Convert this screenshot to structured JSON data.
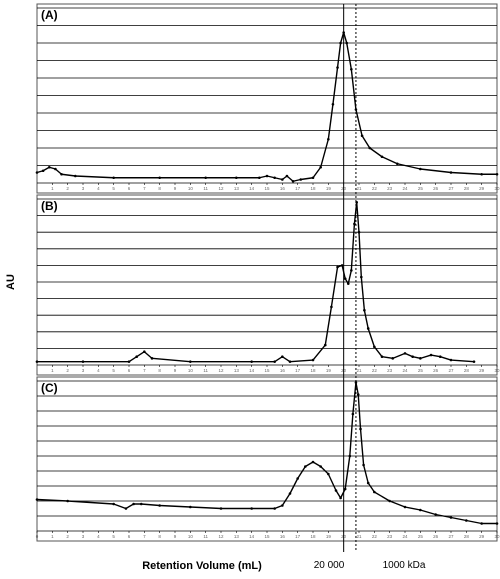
{
  "chart_data": {
    "type": "line",
    "ylabel": "AU",
    "xlabel": "Retention Volume (mL)",
    "markers": [
      {
        "label": "20 000",
        "x": 20
      },
      {
        "label": "1000 kDa",
        "x": 20.8
      }
    ],
    "xlim": [
      0,
      30
    ],
    "x_ticks": [
      "0",
      "1",
      "2",
      "3",
      "4",
      "5",
      "6",
      "7",
      "8",
      "9",
      "10",
      "11",
      "12",
      "13",
      "14",
      "15",
      "16",
      "17",
      "18",
      "19",
      "20",
      "21",
      "22",
      "23",
      "24",
      "25",
      "26",
      "27",
      "28",
      "29",
      "30"
    ],
    "panels": [
      {
        "label": "(A)",
        "ylim": [
          0,
          10
        ],
        "x_ticks": [
          "1",
          "2",
          "3",
          "4",
          "5",
          "6",
          "7",
          "8",
          "9",
          "10",
          "11",
          "12",
          "13",
          "14",
          "15",
          "16",
          "17",
          "18",
          "19",
          "20",
          "21",
          "22",
          "23",
          "24",
          "25",
          "26",
          "27",
          "28",
          "29",
          "30"
        ],
        "series": [
          {
            "x": [
              0,
              0.4,
              0.8,
              1.2,
              1.6,
              2.5,
              5,
              8,
              11,
              13,
              14.5,
              15,
              15.5,
              16,
              16.3,
              16.7,
              17.2,
              18,
              18.5,
              19,
              19.3,
              19.6,
              19.8,
              20,
              20.2,
              20.5,
              20.8,
              21.2,
              21.7,
              22.5,
              23.5,
              25,
              27,
              29,
              30
            ],
            "y": [
              0.6,
              0.7,
              0.9,
              0.8,
              0.5,
              0.4,
              0.3,
              0.3,
              0.3,
              0.3,
              0.3,
              0.4,
              0.3,
              0.2,
              0.4,
              0.1,
              0.2,
              0.3,
              0.9,
              2.5,
              4.5,
              6.6,
              8.0,
              8.6,
              8.0,
              6.5,
              4.2,
              2.7,
              2.0,
              1.5,
              1.1,
              0.8,
              0.6,
              0.5,
              0.5
            ]
          }
        ]
      },
      {
        "label": "(B)",
        "ylim": [
          0,
          10
        ],
        "x_ticks": [
          "1",
          "2",
          "3",
          "4",
          "5",
          "6",
          "7",
          "8",
          "9",
          "10",
          "11",
          "12",
          "13",
          "14",
          "15",
          "16",
          "17",
          "18",
          "19",
          "20",
          "21",
          "22",
          "23",
          "24",
          "25",
          "26",
          "27",
          "28",
          "29",
          "30"
        ],
        "series": [
          {
            "x": [
              0,
              3,
              6,
              6.5,
              7,
              7.5,
              10,
              14,
              15.5,
              16,
              16.5,
              18,
              18.8,
              19.2,
              19.6,
              19.9,
              20.1,
              20.3,
              20.5,
              20.7,
              20.85,
              21.0,
              21.15,
              21.35,
              21.6,
              22.0,
              22.5,
              23.2,
              24,
              24.5,
              25,
              25.7,
              26.3,
              27,
              28.5
            ],
            "y": [
              0.2,
              0.2,
              0.2,
              0.5,
              0.8,
              0.4,
              0.2,
              0.2,
              0.2,
              0.5,
              0.2,
              0.3,
              1.2,
              3.5,
              5.9,
              6.0,
              5.2,
              4.9,
              5.7,
              8.5,
              9.8,
              8.0,
              5.3,
              3.3,
              2.2,
              1.1,
              0.5,
              0.4,
              0.7,
              0.5,
              0.4,
              0.6,
              0.5,
              0.3,
              0.2
            ]
          }
        ]
      },
      {
        "label": "(C)",
        "ylim": [
          0,
          10
        ],
        "x_ticks": [
          "0",
          "1",
          "2",
          "3",
          "4",
          "5",
          "6",
          "7",
          "8",
          "9",
          "10",
          "11",
          "12",
          "13",
          "14",
          "15",
          "16",
          "17",
          "18",
          "19",
          "20",
          "21",
          "22",
          "23",
          "24",
          "25",
          "26",
          "27",
          "28",
          "29",
          "30"
        ],
        "series": [
          {
            "x": [
              0,
              2,
              5,
              5.8,
              6.3,
              6.8,
              8,
              10,
              12,
              14,
              15.5,
              16,
              16.5,
              17,
              17.5,
              18,
              18.5,
              19,
              19.5,
              19.8,
              20.1,
              20.4,
              20.6,
              20.8,
              20.95,
              21.1,
              21.3,
              21.6,
              22,
              23,
              24,
              25,
              26,
              27,
              28,
              29,
              30
            ],
            "y": [
              2.1,
              2.0,
              1.8,
              1.5,
              1.8,
              1.8,
              1.7,
              1.6,
              1.5,
              1.5,
              1.5,
              1.7,
              2.5,
              3.5,
              4.3,
              4.6,
              4.3,
              3.8,
              2.7,
              2.2,
              2.8,
              5.0,
              7.8,
              9.9,
              9.1,
              6.8,
              4.4,
              3.2,
              2.6,
              2.0,
              1.6,
              1.4,
              1.1,
              0.9,
              0.7,
              0.5,
              0.5
            ]
          }
        ]
      }
    ]
  }
}
